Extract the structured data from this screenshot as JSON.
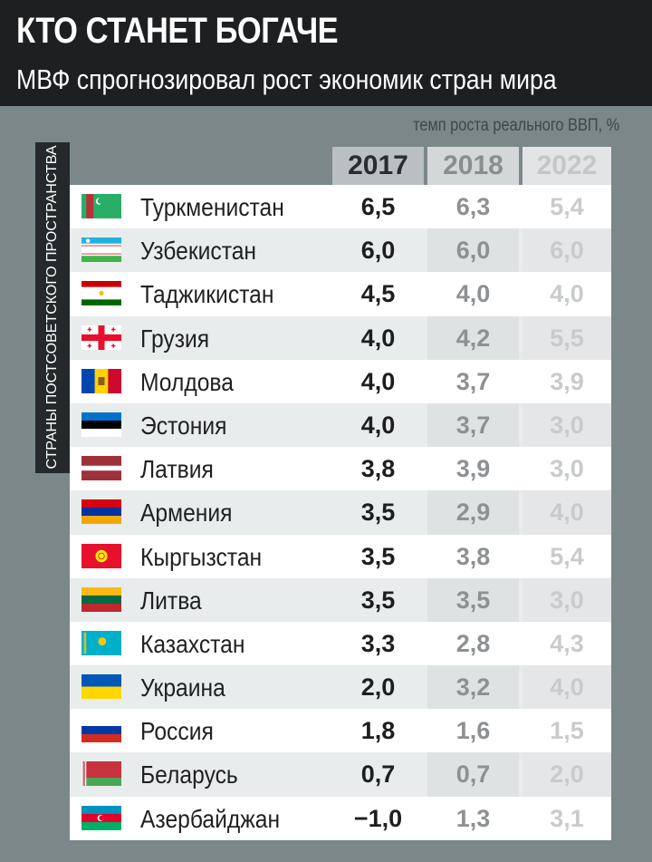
{
  "header": {
    "title": "КТО СТАНЕТ БОГАЧЕ",
    "subtitle": "МВФ спрогнозировал рост экономик стран мира"
  },
  "unit_note": "темп роста реального ВВП, %",
  "side_label": "СТРАНЫ ПОСТСОВЕТСКОГО ПРОСТРАНСТВА",
  "colors": {
    "header_bg": "#1d1f21",
    "page_bg": "#7b8789",
    "col_2017": "#1c1e20",
    "col_2018": "#8d9193",
    "col_2022": "#c8cbcc"
  },
  "chart_data": {
    "type": "table",
    "title": "КТО СТАНЕТ БОГАЧЕ",
    "subtitle": "МВФ спрогнозировал рост экономик стран мира",
    "unit": "темп роста реального ВВП, %",
    "columns": [
      "2017",
      "2018",
      "2022"
    ],
    "rows": [
      {
        "country": "Туркменистан",
        "flag": "turkmenistan-flag-icon",
        "values": [
          "6,5",
          "6,3",
          "5,4"
        ]
      },
      {
        "country": "Узбекистан",
        "flag": "uzbekistan-flag-icon",
        "values": [
          "6,0",
          "6,0",
          "6,0"
        ]
      },
      {
        "country": "Таджикистан",
        "flag": "tajikistan-flag-icon",
        "values": [
          "4,5",
          "4,0",
          "4,0"
        ]
      },
      {
        "country": "Грузия",
        "flag": "georgia-flag-icon",
        "values": [
          "4,0",
          "4,2",
          "5,5"
        ]
      },
      {
        "country": "Молдова",
        "flag": "moldova-flag-icon",
        "values": [
          "4,0",
          "3,7",
          "3,9"
        ]
      },
      {
        "country": "Эстония",
        "flag": "estonia-flag-icon",
        "values": [
          "4,0",
          "3,7",
          "3,0"
        ]
      },
      {
        "country": "Латвия",
        "flag": "latvia-flag-icon",
        "values": [
          "3,8",
          "3,9",
          "3,0"
        ]
      },
      {
        "country": "Армения",
        "flag": "armenia-flag-icon",
        "values": [
          "3,5",
          "2,9",
          "4,0"
        ]
      },
      {
        "country": "Кыргызстан",
        "flag": "kyrgyzstan-flag-icon",
        "values": [
          "3,5",
          "3,8",
          "5,4"
        ]
      },
      {
        "country": "Литва",
        "flag": "lithuania-flag-icon",
        "values": [
          "3,5",
          "3,5",
          "3,0"
        ]
      },
      {
        "country": "Казахстан",
        "flag": "kazakhstan-flag-icon",
        "values": [
          "3,3",
          "2,8",
          "4,3"
        ]
      },
      {
        "country": "Украина",
        "flag": "ukraine-flag-icon",
        "values": [
          "2,0",
          "3,2",
          "4,0"
        ]
      },
      {
        "country": "Россия",
        "flag": "russia-flag-icon",
        "values": [
          "1,8",
          "1,6",
          "1,5"
        ]
      },
      {
        "country": "Беларусь",
        "flag": "belarus-flag-icon",
        "values": [
          "0,7",
          "0,7",
          "2,0"
        ]
      },
      {
        "country": "Азербайджан",
        "flag": "azerbaijan-flag-icon",
        "values": [
          "−1,0",
          "1,3",
          "3,1"
        ]
      }
    ]
  }
}
